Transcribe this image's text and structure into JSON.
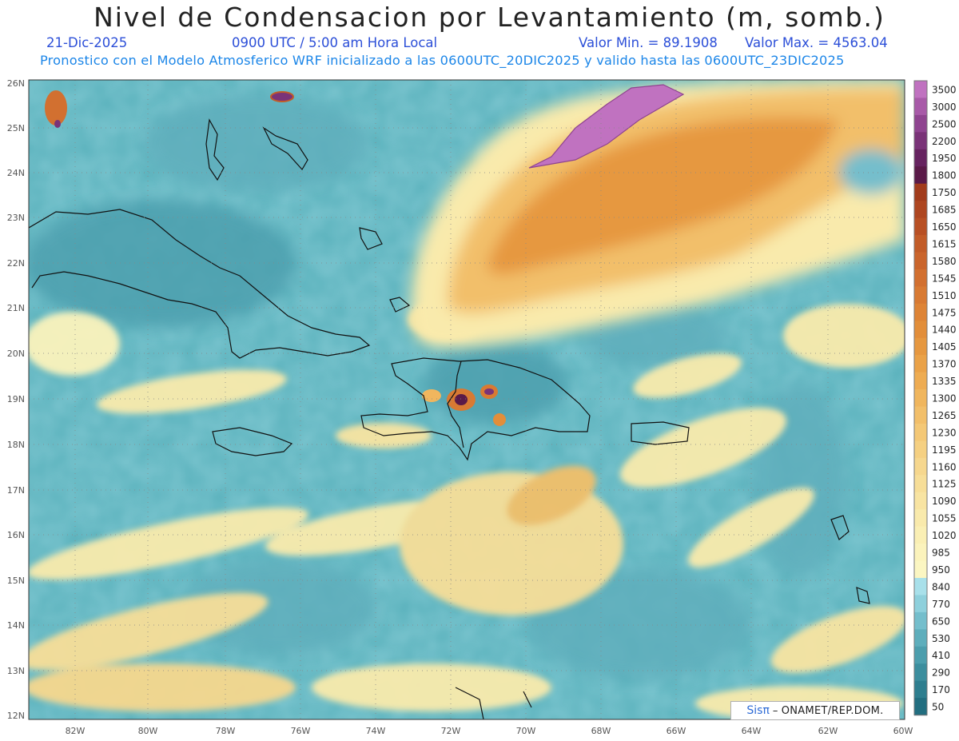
{
  "header": {
    "title": "Nivel de Condensacion por Levantamiento (m, somb.)",
    "date": "21-Dic-2025",
    "time": "0900 UTC / 5:00 am Hora Local",
    "min_label": "Valor Min. = 89.1908",
    "max_label": "Valor Max. = 4563.04",
    "forecast_line": "Pronostico con el Modelo Atmosferico WRF inicializado a las 0600UTC_20DIC2025 y valido hasta las  0600UTC_23DIC2025"
  },
  "map": {
    "lon_range": [
      -83.2,
      -60
    ],
    "lat_range": [
      11.9,
      26.2
    ],
    "lon_ticks": [
      "82W",
      "80W",
      "78W",
      "76W",
      "74W",
      "72W",
      "70W",
      "68W",
      "66W",
      "64W",
      "62W",
      "60W"
    ],
    "lat_ticks": [
      "26N",
      "25N",
      "24N",
      "23N",
      "22N",
      "21N",
      "20N",
      "19N",
      "18N",
      "17N",
      "16N",
      "15N",
      "14N",
      "13N",
      "12N"
    ],
    "graticule": "dotted"
  },
  "colorbar": {
    "labels": [
      "3500",
      "3000",
      "2500",
      "2200",
      "1950",
      "1800",
      "1750",
      "1685",
      "1650",
      "1615",
      "1580",
      "1545",
      "1510",
      "1475",
      "1440",
      "1405",
      "1370",
      "1335",
      "1300",
      "1265",
      "1230",
      "1195",
      "1160",
      "1125",
      "1090",
      "1055",
      "1020",
      "985",
      "950",
      "840",
      "770",
      "650",
      "530",
      "410",
      "290",
      "170",
      "50"
    ],
    "colors": [
      "#c072c0",
      "#a85aa8",
      "#8f4490",
      "#7a3378",
      "#662360",
      "#5a1a48",
      "#a23c1c",
      "#ae4620",
      "#b85024",
      "#c25c28",
      "#ca652c",
      "#d27030",
      "#d87a33",
      "#de8436",
      "#e28e3a",
      "#e69840",
      "#eaa248",
      "#eeac52",
      "#f0b65e",
      "#f2bf6a",
      "#f4c876",
      "#f5d082",
      "#f6d78e",
      "#f7de98",
      "#f8e4a2",
      "#f9eaac",
      "#faefb4",
      "#fbf3bc",
      "#fbf6c2",
      "#a8e0ea",
      "#8ed0dc",
      "#74becc",
      "#5eaebc",
      "#4c9ead",
      "#3c8e9e",
      "#2e7e8f",
      "#226e80"
    ]
  },
  "credit": {
    "logo": "Sisπ",
    "dash": "–",
    "org": "ONAMET/REP.DOM."
  }
}
